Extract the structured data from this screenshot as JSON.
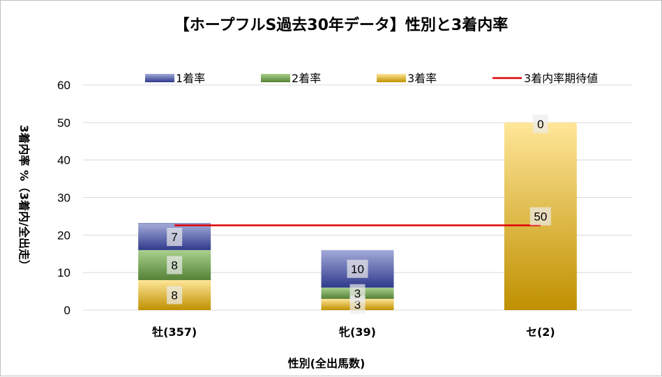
{
  "chart_data": {
    "type": "bar",
    "stacked": true,
    "title": "【ホープフルS過去30年データ】性別と3着内率",
    "xlabel": "性別(全出馬数)",
    "ylabel": "3着内率 %（3着内/全出走）",
    "ylim": [
      0,
      60
    ],
    "yticks": [
      0,
      10,
      20,
      30,
      40,
      50,
      60
    ],
    "grid": true,
    "legend_position": "top",
    "categories": [
      "牡(357)",
      "牝(39)",
      "セ(2)"
    ],
    "series": [
      {
        "name": "3着率",
        "values": [
          8,
          3,
          50
        ],
        "color_top": "#ffe699",
        "color_bottom": "#bf9000",
        "labels": [
          "8",
          "3",
          "50"
        ]
      },
      {
        "name": "2着率",
        "values": [
          8,
          3,
          0
        ],
        "color_top": "#a9d18e",
        "color_bottom": "#548235",
        "labels": [
          "8",
          "3",
          ""
        ]
      },
      {
        "name": "1着率",
        "values": [
          7,
          10,
          0
        ],
        "color_top": "#a3aad9",
        "color_bottom": "#2f3a8c",
        "labels": [
          "7",
          "10",
          "0"
        ]
      }
    ],
    "stack_totals": [
      23.2,
      15.4,
      50
    ],
    "reference_line": {
      "name": "3着内率期待値",
      "value": 22.6,
      "color": "#e00000"
    }
  }
}
